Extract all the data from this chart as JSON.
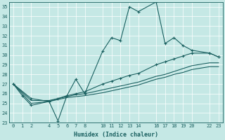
{
  "xlabel": "Humidex (Indice chaleur)",
  "ylabel": "",
  "background_color": "#c5e8e5",
  "line_color": "#1a6060",
  "xlim": [
    -0.5,
    23.5
  ],
  "ylim": [
    23,
    35.5
  ],
  "xticks": [
    0,
    1,
    2,
    4,
    5,
    6,
    7,
    8,
    10,
    11,
    12,
    13,
    14,
    16,
    17,
    18,
    19,
    20,
    22,
    23
  ],
  "yticks": [
    23,
    24,
    25,
    26,
    27,
    28,
    29,
    30,
    31,
    32,
    33,
    34,
    35
  ],
  "line1_x": [
    0,
    1,
    2,
    4,
    5,
    6,
    7,
    8,
    10,
    11,
    12,
    13,
    14,
    16,
    17,
    18,
    19,
    20,
    22,
    23
  ],
  "line1_y": [
    27.0,
    25.8,
    24.8,
    25.2,
    23.2,
    25.8,
    27.5,
    26.0,
    30.4,
    31.8,
    31.5,
    35.0,
    34.5,
    35.5,
    31.2,
    31.8,
    31.0,
    30.5,
    30.2,
    29.8
  ],
  "line2_x": [
    0,
    2,
    4,
    5,
    6,
    7,
    8,
    10,
    11,
    12,
    13,
    14,
    16,
    17,
    18,
    19,
    20,
    22,
    23
  ],
  "line2_y": [
    27.0,
    25.5,
    25.2,
    25.5,
    25.8,
    26.0,
    26.2,
    27.0,
    27.3,
    27.6,
    27.9,
    28.1,
    29.0,
    29.3,
    29.6,
    29.9,
    30.2,
    30.2,
    29.8
  ],
  "line3_x": [
    0,
    2,
    4,
    5,
    6,
    7,
    8,
    10,
    11,
    12,
    13,
    14,
    16,
    17,
    18,
    19,
    20,
    22,
    23
  ],
  "line3_y": [
    27.0,
    25.3,
    25.3,
    25.5,
    25.7,
    25.9,
    26.0,
    26.4,
    26.6,
    26.8,
    27.0,
    27.2,
    27.8,
    28.0,
    28.3,
    28.6,
    28.9,
    29.2,
    29.2
  ],
  "line4_x": [
    0,
    2,
    4,
    5,
    6,
    7,
    8,
    10,
    11,
    12,
    13,
    14,
    16,
    17,
    18,
    19,
    20,
    22,
    23
  ],
  "line4_y": [
    27.0,
    25.0,
    25.2,
    25.4,
    25.6,
    25.7,
    25.8,
    26.1,
    26.3,
    26.5,
    26.7,
    26.9,
    27.5,
    27.7,
    28.0,
    28.2,
    28.5,
    28.8,
    28.8
  ]
}
